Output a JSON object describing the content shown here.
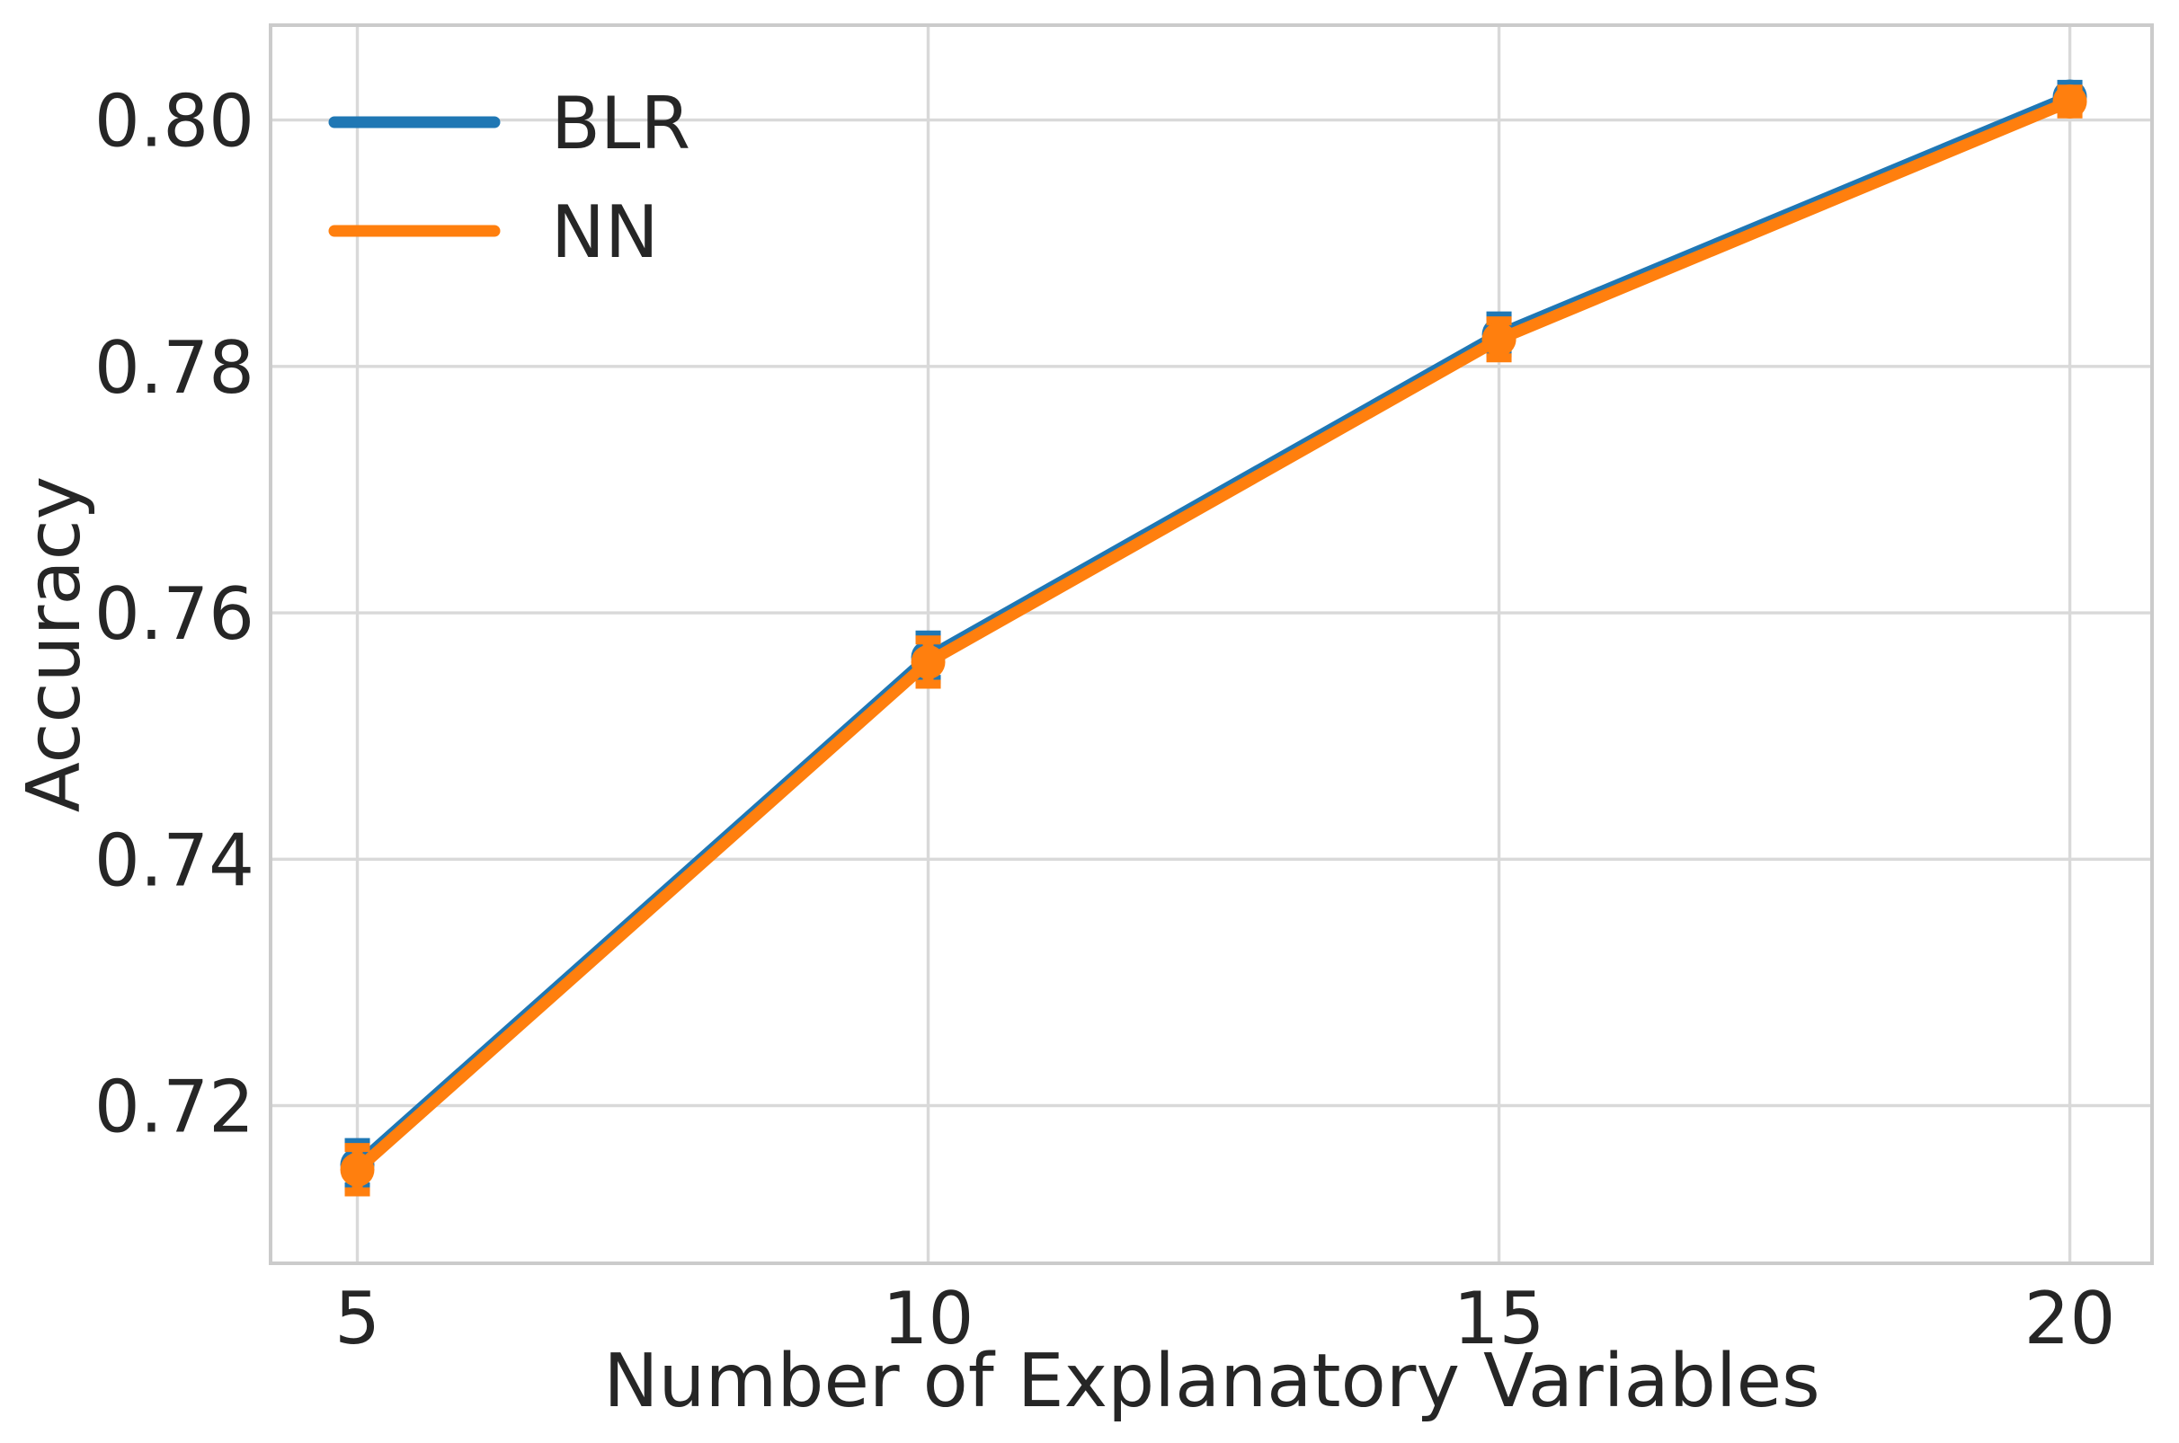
{
  "figure": {
    "background": "#ffffff"
  },
  "chart_data": {
    "type": "line",
    "title": "",
    "xlabel": "Number of Explanatory Variables",
    "ylabel": "Accuracy",
    "x": [
      5,
      10,
      15,
      20
    ],
    "series": [
      {
        "name": "BLR",
        "color": "#1f77b4",
        "values": [
          0.7152,
          0.7564,
          0.7826,
          0.8019
        ],
        "errors": [
          0.0018,
          0.0018,
          0.0015,
          0.001
        ]
      },
      {
        "name": "NN",
        "color": "#ff7f0e",
        "values": [
          0.7148,
          0.756,
          0.7822,
          0.8015
        ],
        "errors": [
          0.0018,
          0.0018,
          0.0015,
          0.001
        ]
      }
    ],
    "xticks": {
      "values": [
        5,
        10,
        15,
        20
      ],
      "labels": [
        "5",
        "10",
        "15",
        "20"
      ]
    },
    "yticks": {
      "values": [
        0.72,
        0.74,
        0.76,
        0.78,
        0.8
      ],
      "labels": [
        "0.72",
        "0.74",
        "0.76",
        "0.78",
        "0.80"
      ]
    },
    "xlim": [
      4.24,
      20.72
    ],
    "ylim": [
      0.7072,
      0.8077
    ],
    "grid": true,
    "legend": {
      "position": "upper-left",
      "frame": false,
      "entries": [
        "BLR",
        "NN"
      ]
    },
    "style": {
      "grid_color": "#d9d9d9",
      "spine_color": "#cbcbcb",
      "text_color": "#262626",
      "marker": "circle",
      "line_width": 13,
      "marker_radius": 19
    }
  }
}
